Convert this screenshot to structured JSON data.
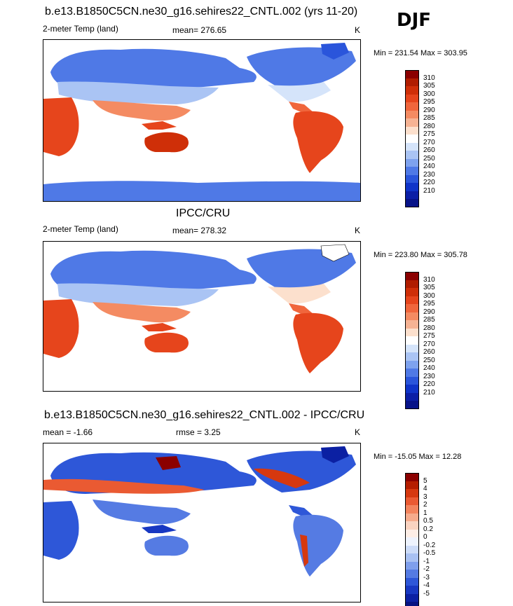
{
  "season": "DJF",
  "panels": [
    {
      "title": "b.e13.B1850C5CN.ne30_g16.sehires22_CNTL.002 (yrs 11-20)",
      "variable": "2-meter Temp (land)",
      "stat": "mean= 276.65",
      "stat2": "",
      "units": "K",
      "minmax": "Min = 231.54 Max = 303.95",
      "colorbar": {
        "labels": [
          "310",
          "305",
          "300",
          "295",
          "290",
          "285",
          "280",
          "275",
          "270",
          "260",
          "250",
          "240",
          "230",
          "220",
          "210"
        ],
        "colors": [
          "#8b0000",
          "#b01d00",
          "#cf2f08",
          "#e6451c",
          "#f0663c",
          "#f48b62",
          "#f6b394",
          "#fce0cd",
          "#ffffff",
          "#d5e4fa",
          "#aac4f4",
          "#7ea2ee",
          "#4f79e6",
          "#2a55db",
          "#0f34c9",
          "#0b1fa6",
          "#071388"
        ]
      }
    },
    {
      "title": "IPCC/CRU",
      "variable": "2-meter Temp (land)",
      "stat": "mean= 278.32",
      "stat2": "",
      "units": "K",
      "minmax": "Min = 223.80 Max = 305.78",
      "colorbar": {
        "labels": [
          "310",
          "305",
          "300",
          "295",
          "290",
          "285",
          "280",
          "275",
          "270",
          "260",
          "250",
          "240",
          "230",
          "220",
          "210"
        ],
        "colors": [
          "#8b0000",
          "#b01d00",
          "#cf2f08",
          "#e6451c",
          "#f0663c",
          "#f48b62",
          "#f6b394",
          "#fce0cd",
          "#ffffff",
          "#d5e4fa",
          "#aac4f4",
          "#7ea2ee",
          "#4f79e6",
          "#2a55db",
          "#0f34c9",
          "#0b1fa6",
          "#071388"
        ]
      }
    },
    {
      "title": "b.e13.B1850C5CN.ne30_g16.sehires22_CNTL.002 - IPCC/CRU",
      "variable": "mean =  -1.66",
      "stat": "rmse =   3.25",
      "stat2": "",
      "units": "K",
      "minmax": "Min = -15.05 Max =  12.28",
      "colorbar": {
        "labels": [
          "5",
          "4",
          "3",
          "2",
          "1",
          "0.5",
          "0.2",
          "0",
          "-0.2",
          "-0.5",
          "-1",
          "-2",
          "-3",
          "-4",
          "-5"
        ],
        "colors": [
          "#8b0000",
          "#b51d00",
          "#d6380f",
          "#ea5a32",
          "#f3845d",
          "#f6ab8c",
          "#fad3c0",
          "#fdeee6",
          "#eef3fd",
          "#cddcf8",
          "#a9c1f2",
          "#7f9fec",
          "#557be3",
          "#2e57d8",
          "#1838c2",
          "#0b20a3",
          "#061282"
        ]
      }
    }
  ]
}
